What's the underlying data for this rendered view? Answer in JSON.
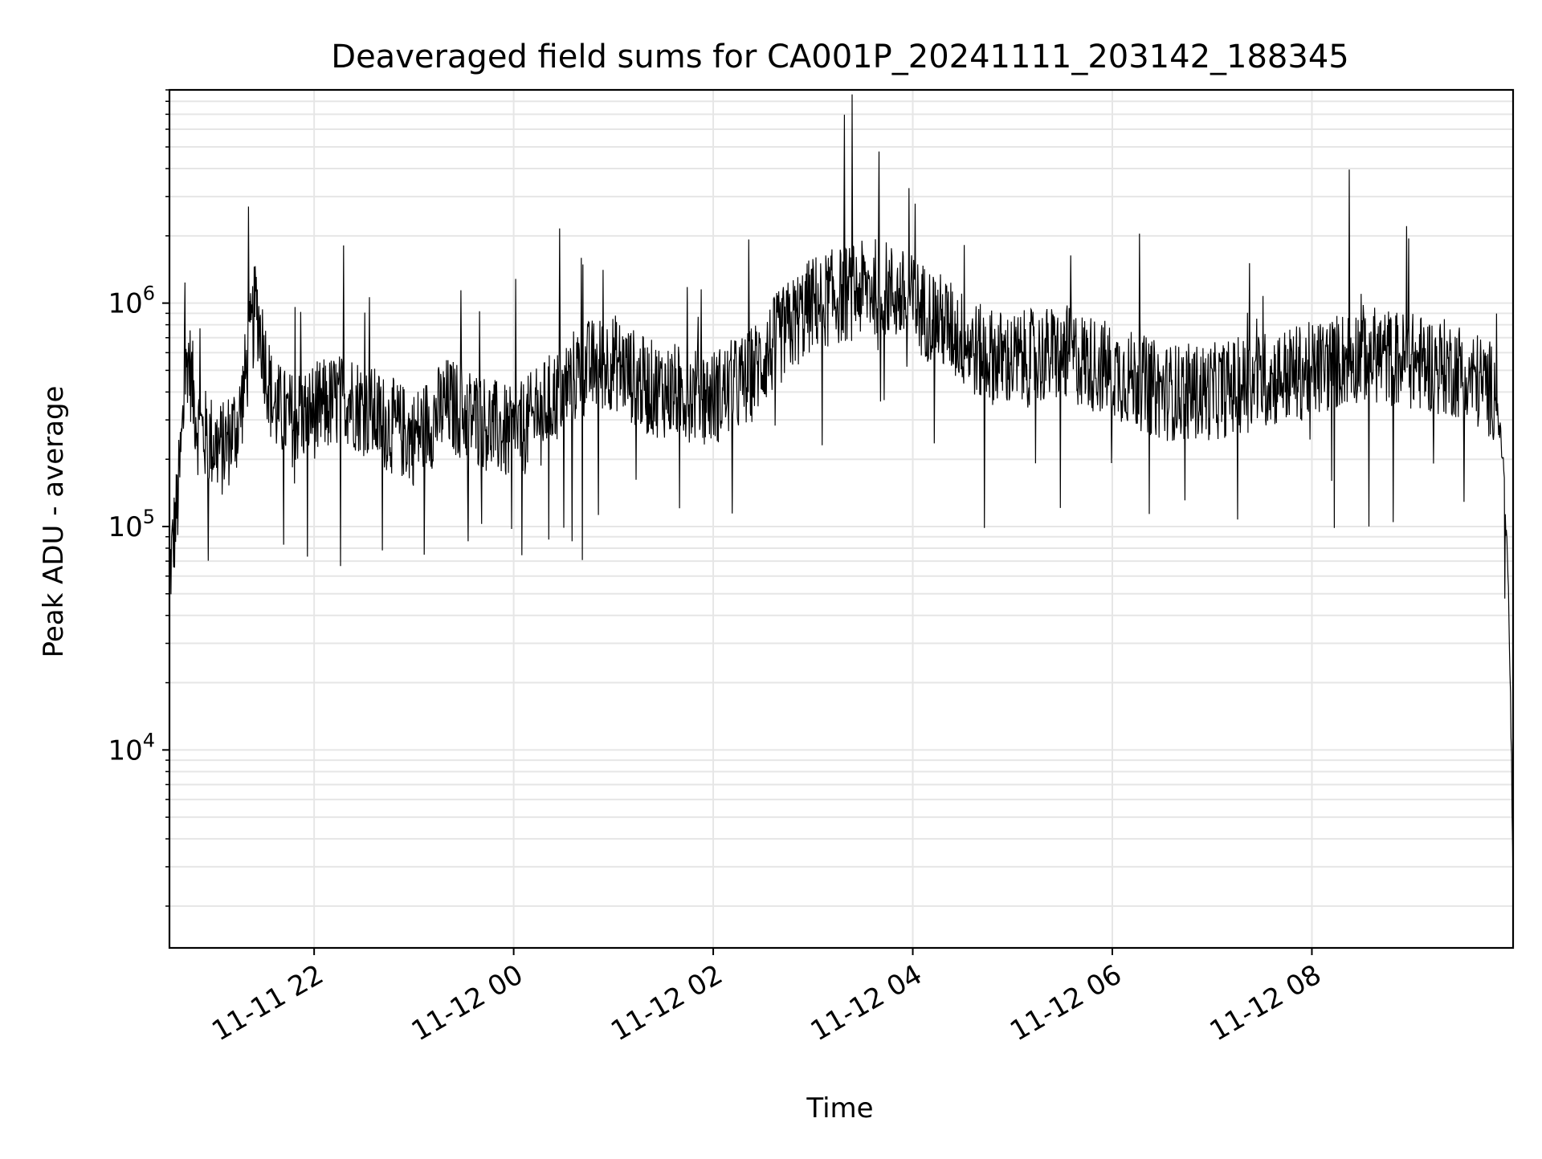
{
  "chart_data": {
    "type": "line",
    "title": "Deaveraged field sums for CA001P_20241111_203142_188345",
    "xlabel": "Time",
    "ylabel": "Peak ADU - average",
    "x_range": [
      "2024-11-11 20:33",
      "2024-11-12 10:01"
    ],
    "y_scale": "log",
    "ylim": [
      1300,
      9000000
    ],
    "grid": true,
    "line_color": "#000000",
    "grid_color": "#e6e6e6",
    "x_ticks": [
      {
        "value": "2024-11-11 22:00",
        "label": "11-11 22"
      },
      {
        "value": "2024-11-12 00:00",
        "label": "11-12 00"
      },
      {
        "value": "2024-11-12 02:00",
        "label": "11-12 02"
      },
      {
        "value": "2024-11-12 04:00",
        "label": "11-12 04"
      },
      {
        "value": "2024-11-12 06:00",
        "label": "11-12 06"
      },
      {
        "value": "2024-11-12 08:00",
        "label": "11-12 08"
      }
    ],
    "y_ticks": [
      {
        "value": 10000,
        "base": "10",
        "exp": "4"
      },
      {
        "value": 100000,
        "base": "10",
        "exp": "5"
      },
      {
        "value": 1000000,
        "base": "10",
        "exp": "6"
      }
    ],
    "series": [
      {
        "x": [
          "2024-11-11 20:33",
          "2024-11-11 20:38",
          "2024-11-11 20:44",
          "2024-11-11 20:50",
          "2024-11-11 20:55",
          "2024-11-11 21:05",
          "2024-11-11 21:15",
          "2024-11-11 21:25",
          "2024-11-11 21:35",
          "2024-11-11 21:45",
          "2024-11-11 22:00",
          "2024-11-11 22:20",
          "2024-11-11 22:40",
          "2024-11-11 23:00",
          "2024-11-11 23:20",
          "2024-11-11 23:40",
          "2024-11-12 00:00",
          "2024-11-12 00:20",
          "2024-11-12 00:40",
          "2024-11-12 01:00",
          "2024-11-12 01:20",
          "2024-11-12 01:40",
          "2024-11-12 02:00",
          "2024-11-12 02:20",
          "2024-11-12 02:40",
          "2024-11-12 03:00",
          "2024-11-12 03:20",
          "2024-11-12 03:40",
          "2024-11-12 04:00",
          "2024-11-12 04:20",
          "2024-11-12 04:40",
          "2024-11-12 05:00",
          "2024-11-12 05:30",
          "2024-11-12 06:00",
          "2024-11-12 06:30",
          "2024-11-12 07:00",
          "2024-11-12 07:30",
          "2024-11-12 08:00",
          "2024-11-12 08:30",
          "2024-11-12 09:00",
          "2024-11-12 09:30",
          "2024-11-12 09:50",
          "2024-11-12 09:55",
          "2024-11-12 09:58",
          "2024-11-12 10:00",
          "2024-11-12 10:01"
        ],
        "y": [
          60000,
          130000,
          600000,
          280000,
          250000,
          220000,
          300000,
          1000000,
          350000,
          300000,
          330000,
          380000,
          300000,
          250000,
          350000,
          300000,
          250000,
          350000,
          500000,
          550000,
          420000,
          400000,
          380000,
          450000,
          700000,
          1000000,
          1100000,
          1200000,
          1000000,
          800000,
          600000,
          550000,
          600000,
          500000,
          400000,
          400000,
          450000,
          500000,
          600000,
          550000,
          500000,
          400000,
          200000,
          60000,
          10000,
          2000
        ]
      }
    ]
  }
}
